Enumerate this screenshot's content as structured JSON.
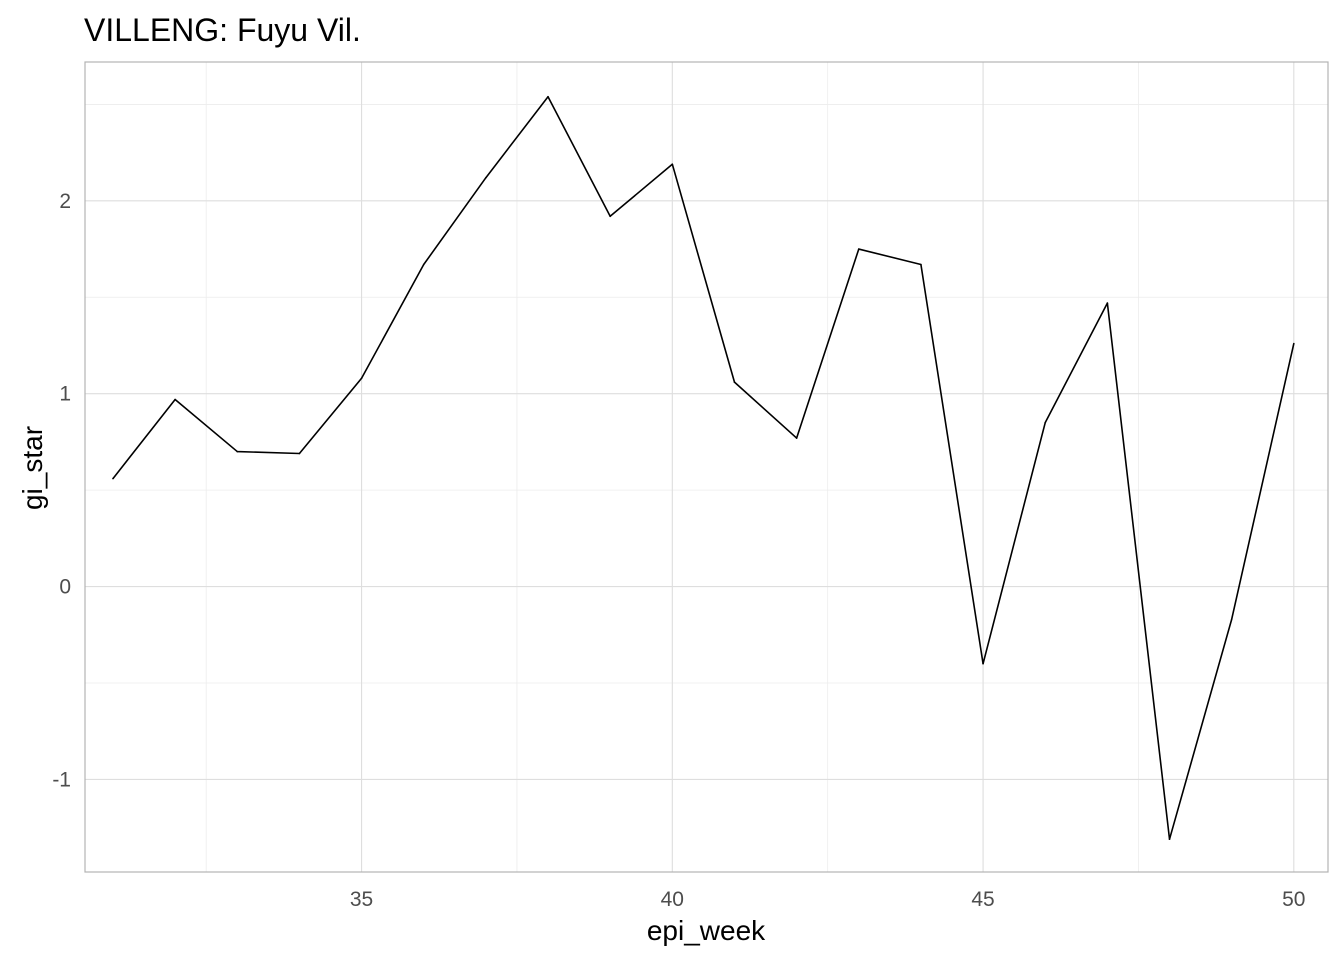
{
  "chart_data": {
    "type": "line",
    "title": "VILLENG: Fuyu Vil.",
    "xlabel": "epi_week",
    "ylabel": "gi_star",
    "xlim": [
      30.55,
      50.55
    ],
    "ylim": [
      -1.48,
      2.72
    ],
    "x_major_ticks": [
      35,
      40,
      45,
      50
    ],
    "x_minor_ticks": [
      32.5,
      37.5,
      42.5,
      47.5
    ],
    "y_major_ticks": [
      -1,
      0,
      1,
      2
    ],
    "y_minor_ticks": [
      -0.5,
      0.5,
      1.5,
      2.5
    ],
    "x_tick_labels": [
      "35",
      "40",
      "45",
      "50"
    ],
    "y_tick_labels": [
      "-1",
      "0",
      "1",
      "2"
    ],
    "grid": true,
    "legend": "none",
    "line_color": "#000000",
    "x": [
      31,
      32,
      33,
      34,
      35,
      36,
      37,
      38,
      39,
      40,
      41,
      42,
      43,
      44,
      45,
      46,
      47,
      48,
      49,
      50
    ],
    "y": [
      0.56,
      0.97,
      0.7,
      0.69,
      1.08,
      1.67,
      2.12,
      2.54,
      1.92,
      2.19,
      1.06,
      0.77,
      1.75,
      1.67,
      -0.4,
      0.85,
      1.47,
      -1.31,
      -0.17,
      1.26
    ]
  }
}
